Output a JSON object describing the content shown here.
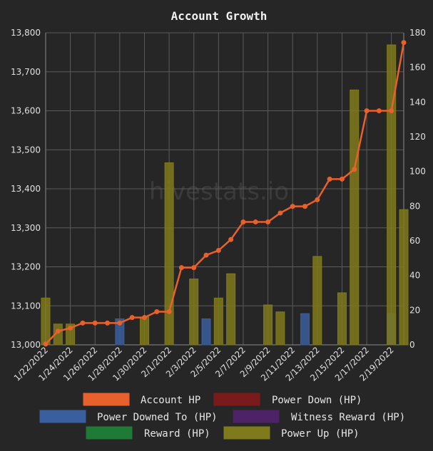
{
  "chart_data": {
    "type": "bar",
    "title": "Account Growth",
    "watermark": "hivestats.io",
    "categories": [
      "1/22/2022",
      "1/23/2022",
      "1/24/2022",
      "1/25/2022",
      "1/26/2022",
      "1/27/2022",
      "1/28/2022",
      "1/29/2022",
      "1/30/2022",
      "1/31/2022",
      "2/1/2022",
      "2/2/2022",
      "2/3/2022",
      "2/4/2022",
      "2/5/2022",
      "2/6/2022",
      "2/7/2022",
      "2/8/2022",
      "2/9/2022",
      "2/10/2022",
      "2/11/2022",
      "2/12/2022",
      "2/13/2022",
      "2/14/2022",
      "2/15/2022",
      "2/16/2022",
      "2/17/2022",
      "2/18/2022",
      "2/19/2022",
      "2/20/2022"
    ],
    "x_tick_labels": [
      "1/22/2022",
      "1/24/2022",
      "1/26/2022",
      "1/28/2022",
      "1/30/2022",
      "2/1/2022",
      "2/3/2022",
      "2/5/2022",
      "2/7/2022",
      "2/9/2022",
      "2/11/2022",
      "2/13/2022",
      "2/15/2022",
      "2/17/2022",
      "2/19/2022"
    ],
    "left_axis": {
      "min": 13000,
      "max": 13800,
      "ticks": [
        "13,000",
        "13,100",
        "13,200",
        "13,300",
        "13,400",
        "13,500",
        "13,600",
        "13,700",
        "13,800"
      ]
    },
    "right_axis": {
      "min": 0,
      "max": 180,
      "ticks": [
        "0",
        "20",
        "40",
        "60",
        "80",
        "100",
        "120",
        "140",
        "160",
        "180"
      ]
    },
    "grid": true,
    "legend_position": "bottom",
    "series": [
      {
        "name": "Account HP",
        "kind": "line",
        "axis": "left",
        "color": "#e8612c",
        "values": [
          13002,
          13035,
          13043,
          13056,
          13056,
          13056,
          13056,
          13070,
          13070,
          13085,
          13085,
          13198,
          13198,
          13230,
          13242,
          13270,
          13315,
          13315,
          13315,
          13338,
          13355,
          13355,
          13372,
          13425,
          13425,
          13450,
          13600,
          13600,
          13600,
          13775
        ]
      },
      {
        "name": "Power Down (HP)",
        "kind": "bar",
        "axis": "right",
        "color": "#7a1a1a",
        "values": [
          0,
          0,
          0,
          0,
          0,
          0,
          0,
          0,
          0,
          0,
          0,
          0,
          0,
          0,
          0,
          0,
          0,
          0,
          0,
          0,
          0,
          0,
          0,
          0,
          0,
          0,
          0,
          0,
          0,
          0
        ]
      },
      {
        "name": "Power Downed To (HP)",
        "kind": "bar",
        "axis": "right",
        "color": "#3a5f9e",
        "values": [
          0,
          0,
          0,
          0,
          0,
          0,
          15,
          0,
          0,
          0,
          0,
          0,
          0,
          15,
          0,
          0,
          0,
          0,
          0,
          0,
          0,
          18,
          0,
          0,
          0,
          0,
          0,
          0,
          18,
          0
        ]
      },
      {
        "name": "Witness Reward (HP)",
        "kind": "bar",
        "axis": "right",
        "color": "#4d2266",
        "values": [
          0,
          0,
          0,
          0,
          0,
          0,
          0,
          0,
          0,
          0,
          0,
          0,
          0,
          0,
          0,
          0,
          0,
          0,
          0,
          0,
          0,
          0,
          0,
          0,
          0,
          0,
          0,
          0,
          0,
          0
        ]
      },
      {
        "name": "Reward (HP)",
        "kind": "bar",
        "axis": "right",
        "color": "#1e7a35",
        "values": [
          0,
          0,
          0,
          0,
          0,
          0,
          0,
          0,
          0,
          0,
          0,
          0,
          0,
          0,
          0,
          0,
          0,
          0,
          0,
          0,
          0,
          0,
          0,
          0,
          0,
          0,
          0,
          0,
          0,
          0
        ]
      },
      {
        "name": "Power Up (HP)",
        "kind": "bar",
        "axis": "right",
        "color": "#7f7a1c",
        "values": [
          27,
          12,
          12,
          0,
          0,
          0,
          0,
          0,
          16,
          0,
          105,
          0,
          38,
          0,
          27,
          41,
          0,
          0,
          23,
          19,
          0,
          0,
          51,
          0,
          30,
          147,
          0,
          0,
          173,
          78
        ]
      }
    ]
  }
}
